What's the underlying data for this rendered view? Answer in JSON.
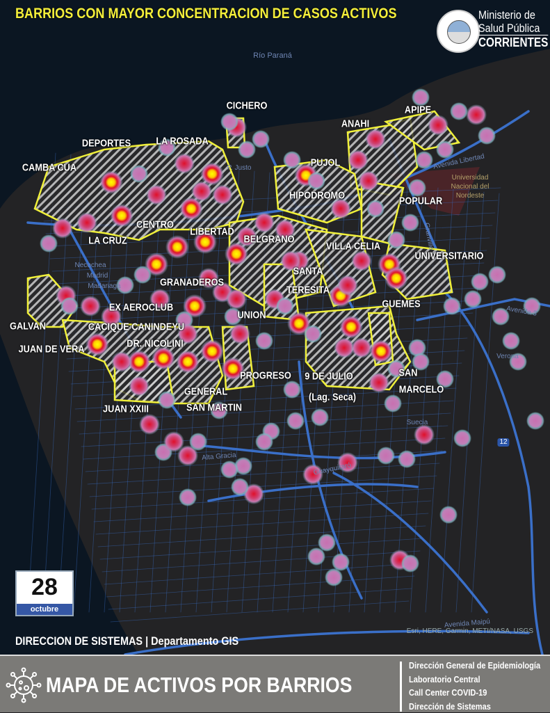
{
  "title": "BARRIOS CON MAYOR CONCENTRACION DE CASOS ACTIVOS",
  "logo": {
    "line1": "Ministerio de",
    "line2": "Salud Pública",
    "line3": "CORRIENTES",
    "seal_text": "GOBIERNO PROVINCIAL"
  },
  "colors": {
    "background": "#1f1f21",
    "river": "#0b1622",
    "roads": "#3a6fc8",
    "barrio_outline": "#f0f03a",
    "title": "#f4ef3a",
    "footer": "#7b7a77",
    "date_band": "#3557a5"
  },
  "map": {
    "streets": [
      "Río Paraná",
      "Avenida Libertad",
      "Universidad",
      "Nacional del",
      "Nordeste",
      "Granville",
      "Necochea",
      "Madrid",
      "Madariaga",
      "Avenida Maipú",
      "Alta Gracia",
      "Guayquiraró",
      "Verona",
      "Suecia",
      "Avenida 3",
      "P. Justo",
      "12"
    ],
    "barrios": [
      "CICHERO",
      "ANAHI",
      "APIPE",
      "DEPORTES",
      "LA ROSADA",
      "CAMBA CUA",
      "PUJOL",
      "HIPODROMO",
      "POPULAR",
      "CENTRO",
      "LIBERTAD",
      "LA CRUZ",
      "BELGRANO",
      "VILLA CELIA",
      "UNIVERSITARIO",
      "SANTA",
      "TERESITA",
      "GRANADEROS",
      "GUEMES",
      "EX AEROCLUB",
      "UNION",
      "GALVAN",
      "CACIQUE CANINDEYU",
      "DR. NICOLINI",
      "JUAN DE VERA",
      "PROGRESO",
      "9 DE JULIO",
      "(Lag. Seca)",
      "SAN",
      "MARCELO",
      "GENERAL",
      "SAN MARTIN",
      "JUAN XXIII"
    ],
    "credit": "Esri, HERE, Garmin, METI/NASA, USGS"
  },
  "date": {
    "day": "28",
    "month": "octubre"
  },
  "department": "DIRECCION DE SISTEMAS | Departamento GIS",
  "footer": {
    "title": "MAPA DE ACTIVOS POR BARRIOS",
    "icon": "virus-icon",
    "lines": [
      "Dirección General de Epidemiología",
      "Laboratorio Central",
      "Call Center COVID-19",
      "Dirección de Sistemas"
    ]
  }
}
